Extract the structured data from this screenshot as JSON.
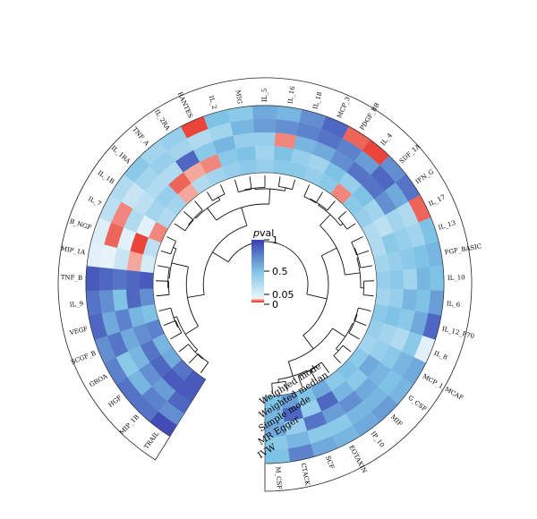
{
  "chart_data": {
    "type": "heatmap",
    "layout": "circular",
    "methods": [
      "IVW",
      "MR Egger",
      "Simple mode",
      "Weighted median",
      "Weighted mode"
    ],
    "legend": {
      "title_italic": "p",
      "title_rest": "val",
      "ticks": [
        {
          "value": 1,
          "label": "1"
        },
        {
          "value": 0.5,
          "label": "0.5"
        },
        {
          "value": 0.05,
          "label": "0.05"
        },
        {
          "value": 0,
          "label": "0"
        }
      ]
    },
    "color_scale": {
      "low": "#e8231b",
      "threshold": 0.05,
      "light": "#eef6fb",
      "mid": "#7ec3e6",
      "high": "#3a40b0"
    },
    "cytokines": [
      {
        "name": "TRAIL",
        "p": [
          0.95,
          0.7,
          0.85,
          0.9,
          0.9
        ]
      },
      {
        "name": "MIP_1B",
        "p": [
          0.8,
          0.75,
          0.65,
          0.9,
          0.8
        ]
      },
      {
        "name": "HGF",
        "p": [
          0.8,
          0.55,
          0.7,
          0.85,
          0.6
        ]
      },
      {
        "name": "GROA",
        "p": [
          0.75,
          0.45,
          0.55,
          0.8,
          0.55
        ]
      },
      {
        "name": "SCGF_B",
        "p": [
          0.7,
          0.8,
          0.6,
          0.7,
          0.75
        ]
      },
      {
        "name": "VEGF",
        "p": [
          0.85,
          0.6,
          0.75,
          0.55,
          0.5
        ]
      },
      {
        "name": "IL_9",
        "p": [
          0.8,
          0.7,
          0.5,
          0.85,
          0.7
        ]
      },
      {
        "name": "TNF_B",
        "p": [
          0.9,
          0.85,
          0.8,
          0.85,
          0.9
        ]
      },
      {
        "name": "MIP_1A",
        "p": [
          0.1,
          0.08,
          0.2,
          0.04,
          0.15
        ]
      },
      {
        "name": "B_NGF",
        "p": [
          0.12,
          0.02,
          0.1,
          0.01,
          0.25
        ]
      },
      {
        "name": "IL_7",
        "p": [
          0.25,
          0.03,
          0.3,
          0.1,
          0.03
        ]
      },
      {
        "name": "IL_1B",
        "p": [
          0.3,
          0.2,
          0.25,
          0.35,
          0.3
        ]
      },
      {
        "name": "IL_1RA",
        "p": [
          0.45,
          0.35,
          0.3,
          0.4,
          0.35
        ]
      },
      {
        "name": "TNF_A",
        "p": [
          0.35,
          0.4,
          0.3,
          0.02,
          0.04
        ]
      },
      {
        "name": "IL_2RA",
        "p": [
          0.4,
          0.35,
          0.85,
          0.04,
          0.3
        ]
      },
      {
        "name": "RANTES",
        "p": [
          0.01,
          0.3,
          0.45,
          0.03,
          0.35
        ]
      },
      {
        "name": "IL_2",
        "p": [
          0.5,
          0.35,
          0.55,
          0.45,
          0.4
        ]
      },
      {
        "name": "MIG",
        "p": [
          0.45,
          0.55,
          0.4,
          0.5,
          0.45
        ]
      },
      {
        "name": "IL_5",
        "p": [
          0.6,
          0.65,
          0.4,
          0.35,
          0.4
        ]
      },
      {
        "name": "IL_16",
        "p": [
          0.55,
          0.7,
          0.03,
          0.5,
          0.45
        ]
      },
      {
        "name": "IL_18",
        "p": [
          0.7,
          0.75,
          0.55,
          0.4,
          0.45
        ]
      },
      {
        "name": "MCP_3",
        "p": [
          0.85,
          0.8,
          0.6,
          0.35,
          0.4
        ]
      },
      {
        "name": "PDGF_BB",
        "p": [
          0.02,
          0.75,
          0.7,
          0.5,
          0.45
        ]
      },
      {
        "name": "IL_4",
        "p": [
          0.01,
          0.65,
          0.8,
          0.4,
          0.03
        ]
      },
      {
        "name": "SDF_1A",
        "p": [
          0.7,
          0.85,
          0.8,
          0.5,
          0.45
        ]
      },
      {
        "name": "IFN_G",
        "p": [
          0.8,
          0.6,
          0.7,
          0.35,
          0.4
        ]
      },
      {
        "name": "IL_17",
        "p": [
          0.02,
          0.3,
          0.35,
          0.25,
          0.3
        ]
      },
      {
        "name": "IL_13",
        "p": [
          0.5,
          0.35,
          0.4,
          0.45,
          0.3
        ]
      },
      {
        "name": "FGF_BASIC",
        "p": [
          0.55,
          0.5,
          0.45,
          0.4,
          0.35
        ]
      },
      {
        "name": "IL_10",
        "p": [
          0.5,
          0.55,
          0.35,
          0.45,
          0.4
        ]
      },
      {
        "name": "IL_6",
        "p": [
          0.65,
          0.5,
          0.55,
          0.4,
          0.35
        ]
      },
      {
        "name": "IL_12_P70",
        "p": [
          0.85,
          0.6,
          0.45,
          0.5,
          0.45
        ]
      },
      {
        "name": "IL_8",
        "p": [
          0.1,
          0.45,
          0.3,
          0.35,
          0.4
        ]
      },
      {
        "name": "MCP_1_MCAF",
        "p": [
          0.6,
          0.55,
          0.45,
          0.4,
          0.35
        ]
      },
      {
        "name": "G_CSF",
        "p": [
          0.55,
          0.5,
          0.55,
          0.6,
          0.45
        ]
      },
      {
        "name": "MIF",
        "p": [
          0.65,
          0.55,
          0.6,
          0.45,
          0.5
        ]
      },
      {
        "name": "IP_10",
        "p": [
          0.6,
          0.55,
          0.7,
          0.55,
          0.45
        ]
      },
      {
        "name": "EOTAXIN",
        "p": [
          0.55,
          0.45,
          0.65,
          0.85,
          0.6
        ]
      },
      {
        "name": "SCF",
        "p": [
          0.6,
          0.45,
          0.8,
          0.4,
          0.5
        ]
      },
      {
        "name": "CTACK",
        "p": [
          0.75,
          0.55,
          0.4,
          0.85,
          0.65
        ]
      },
      {
        "name": "M_CSF",
        "p": [
          0.5,
          0.45,
          0.6,
          0.55,
          0.5
        ]
      }
    ]
  }
}
